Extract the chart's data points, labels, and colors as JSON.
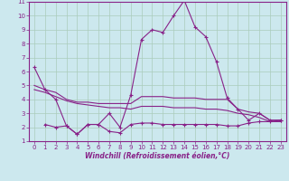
{
  "xlabel": "Windchill (Refroidissement éolien,°C)",
  "background_color": "#cce8ee",
  "grid_color": "#aaccbb",
  "line_color": "#882288",
  "xlim": [
    -0.5,
    23.5
  ],
  "ylim": [
    1,
    11
  ],
  "yticks": [
    1,
    2,
    3,
    4,
    5,
    6,
    7,
    8,
    9,
    10,
    11
  ],
  "xticks": [
    0,
    1,
    2,
    3,
    4,
    5,
    6,
    7,
    8,
    9,
    10,
    11,
    12,
    13,
    14,
    15,
    16,
    17,
    18,
    19,
    20,
    21,
    22,
    23
  ],
  "line1_x": [
    0,
    1,
    2,
    3,
    4,
    5,
    6,
    7,
    8,
    9,
    10,
    11,
    12,
    13,
    14,
    15,
    16,
    17,
    18,
    19,
    20,
    21,
    22,
    23
  ],
  "line1_y": [
    6.3,
    4.7,
    4.0,
    2.1,
    1.5,
    2.2,
    2.2,
    3.0,
    2.0,
    4.3,
    8.3,
    9.0,
    8.8,
    10.0,
    11.1,
    9.2,
    8.5,
    6.7,
    4.1,
    3.3,
    2.5,
    3.0,
    2.5,
    2.5
  ],
  "line2_x": [
    0,
    1,
    2,
    3,
    4,
    5,
    6,
    7,
    8,
    9,
    10,
    11,
    12,
    13,
    14,
    15,
    16,
    17,
    18,
    19,
    20,
    21,
    22,
    23
  ],
  "line2_y": [
    5.0,
    4.7,
    4.5,
    4.0,
    3.8,
    3.8,
    3.7,
    3.7,
    3.7,
    3.7,
    4.2,
    4.2,
    4.2,
    4.1,
    4.1,
    4.1,
    4.0,
    4.0,
    4.0,
    3.3,
    3.1,
    3.0,
    2.5,
    2.5
  ],
  "line3_x": [
    0,
    1,
    2,
    3,
    4,
    5,
    6,
    7,
    8,
    9,
    10,
    11,
    12,
    13,
    14,
    15,
    16,
    17,
    18,
    19,
    20,
    21,
    22,
    23
  ],
  "line3_y": [
    4.7,
    4.5,
    4.2,
    3.9,
    3.7,
    3.6,
    3.5,
    3.4,
    3.4,
    3.3,
    3.5,
    3.5,
    3.5,
    3.4,
    3.4,
    3.4,
    3.3,
    3.3,
    3.2,
    3.0,
    2.9,
    2.7,
    2.4,
    2.4
  ],
  "line4_x": [
    1,
    2,
    3,
    4,
    5,
    6,
    7,
    8,
    9,
    10,
    11,
    12,
    13,
    14,
    15,
    16,
    17,
    18,
    19,
    20,
    21,
    22,
    23
  ],
  "line4_y": [
    2.2,
    2.0,
    2.1,
    1.5,
    2.2,
    2.2,
    1.7,
    1.6,
    2.2,
    2.3,
    2.3,
    2.2,
    2.2,
    2.2,
    2.2,
    2.2,
    2.2,
    2.1,
    2.1,
    2.3,
    2.4,
    2.4,
    2.5
  ]
}
